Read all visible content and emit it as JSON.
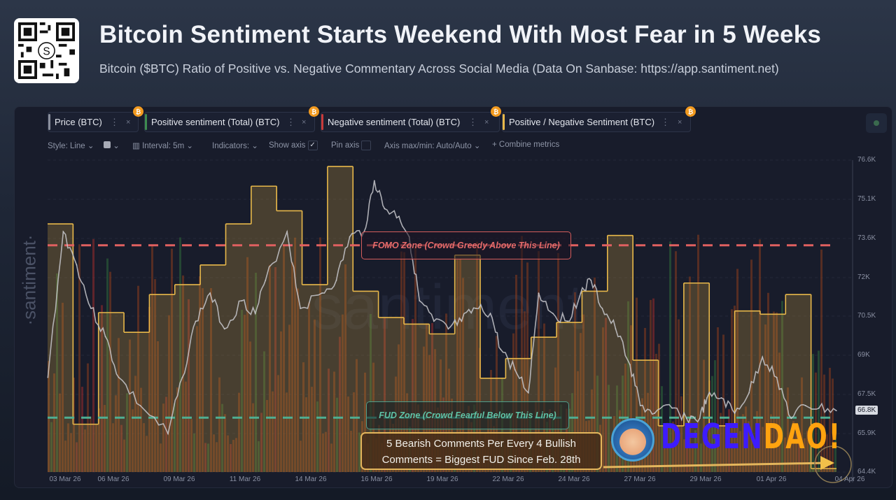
{
  "header": {
    "title": "Bitcoin Sentiment Starts Weekend With Most Fear in 5 Weeks",
    "subtitle": "Bitcoin ($BTC) Ratio of Positive vs. Negative Commentary Across Social Media (Data On Sanbase: https://app.santiment.net)",
    "qr_logo": "S"
  },
  "metrics": [
    {
      "label": "Price (BTC)",
      "color": "#8a8f9c"
    },
    {
      "label": "Positive sentiment (Total) (BTC)",
      "color": "#3d8b4f"
    },
    {
      "label": "Negative sentiment (Total) (BTC)",
      "color": "#c83a3a"
    },
    {
      "label": "Positive / Negative Sentiment (BTC)",
      "color": "#e8b84a"
    }
  ],
  "metric_icons": {
    "asset": "bitcoin-icon",
    "menu": "⋮",
    "close": "×",
    "coin_glyph": "₿"
  },
  "toolbar": {
    "style": "Style: Line",
    "interval": "Interval: 5m",
    "indicators": "Indicators:",
    "show_axis": "Show axis",
    "show_axis_checked": true,
    "pin_axis": "Pin axis",
    "pin_axis_checked": false,
    "axis_minmax": "Axis max/min: Auto/Auto",
    "combine": "Combine metrics",
    "chevron": "⌄",
    "plus": "+"
  },
  "watermark": "·santiment·",
  "zones": {
    "fomo_label": "FOMO Zone (Crowd Greedy Above This Line)",
    "fomo_color": "#e06060",
    "fud_label": "FUD Zone (Crowd Fearful Below This Line)",
    "fud_color": "#4fae92"
  },
  "annotation": {
    "line1": "5 Bearish Comments Per Every 4 Bullish",
    "line2": "Comments = Biggest FUD Since Feb. 28th"
  },
  "overlay_logo": {
    "part1": "DEGEN",
    "part2": "DAO!",
    "color1": "#3d1cff",
    "color2": "#ffa30f"
  },
  "chart_data": {
    "type": "line",
    "title": "",
    "grid": true,
    "x_ticks": [
      "03 Mar 26",
      "06 Mar 26",
      "09 Mar 26",
      "11 Mar 26",
      "14 Mar 26",
      "16 Mar 26",
      "19 Mar 26",
      "22 Mar 26",
      "24 Mar 26",
      "27 Mar 26",
      "29 Mar 26",
      "01 Apr 26",
      "04 Apr 26"
    ],
    "y_ticks": [
      "76.6K",
      "75.1K",
      "73.6K",
      "72K",
      "70.5K",
      "69K",
      "67.5K",
      "65.9K",
      "64.4K"
    ],
    "ylim_price_k": [
      64.4,
      76.6
    ],
    "current_price_label": "66.8K",
    "series": [
      {
        "name": "Price (BTC)",
        "color": "#c8c8cc",
        "unit": "K USD",
        "points": [
          [
            "2026-03-02 12:00",
            68.1
          ],
          [
            "2026-03-03 03:00",
            73.8
          ],
          [
            "2026-03-03 16:00",
            72.5
          ],
          [
            "2026-03-04 06:00",
            70.8
          ],
          [
            "2026-03-04 20:00",
            69.7
          ],
          [
            "2026-03-05 09:00",
            68.1
          ],
          [
            "2026-03-06 06:00",
            67.0
          ],
          [
            "2026-03-07 09:00",
            65.9
          ],
          [
            "2026-03-07 23:00",
            68.1
          ],
          [
            "2026-03-08 12:00",
            70.3
          ],
          [
            "2026-03-09 02:00",
            71.4
          ],
          [
            "2026-03-09 16:00",
            70.0
          ],
          [
            "2026-03-10 09:00",
            71.1
          ],
          [
            "2026-03-10 22:00",
            70.6
          ],
          [
            "2026-03-11 08:00",
            71.9
          ],
          [
            "2026-03-12 05:00",
            73.8
          ],
          [
            "2026-03-12 18:00",
            70.8
          ],
          [
            "2026-03-13 15:00",
            71.4
          ],
          [
            "2026-03-14 05:00",
            71.9
          ],
          [
            "2026-03-14 18:00",
            73.6
          ],
          [
            "2026-03-15 08:00",
            73.8
          ],
          [
            "2026-03-15 18:00",
            75.8
          ],
          [
            "2026-03-16 04:00",
            74.7
          ],
          [
            "2026-03-16 18:00",
            74.4
          ],
          [
            "2026-03-17 04:00",
            73.6
          ],
          [
            "2026-03-17 14:00",
            71.1
          ],
          [
            "2026-03-18 04:00",
            70.3
          ],
          [
            "2026-03-18 18:00",
            70.0
          ],
          [
            "2026-03-19 07:00",
            70.3
          ],
          [
            "2026-03-19 21:00",
            70.8
          ],
          [
            "2026-03-20 11:00",
            70.6
          ],
          [
            "2026-03-20 21:00",
            69.2
          ],
          [
            "2026-03-21 11:00",
            68.4
          ],
          [
            "2026-03-22 00:00",
            67.5
          ],
          [
            "2026-03-22 10:00",
            71.4
          ],
          [
            "2026-03-23 00:00",
            70.6
          ],
          [
            "2026-03-23 14:00",
            70.3
          ],
          [
            "2026-03-24 03:00",
            71.4
          ],
          [
            "2026-03-24 13:00",
            71.9
          ],
          [
            "2026-03-25 00:00",
            70.8
          ],
          [
            "2026-03-25 13:00",
            70.0
          ],
          [
            "2026-03-26 03:00",
            68.6
          ],
          [
            "2026-03-26 13:00",
            67.0
          ],
          [
            "2026-03-27 03:00",
            66.7
          ],
          [
            "2026-03-27 20:00",
            66.9
          ],
          [
            "2026-03-28 10:00",
            66.5
          ],
          [
            "2026-03-28 23:00",
            66.5
          ],
          [
            "2026-03-29 06:00",
            67.3
          ],
          [
            "2026-03-29 20:00",
            67.3
          ],
          [
            "2026-03-30 09:00",
            66.7
          ],
          [
            "2026-03-30 23:00",
            67.5
          ],
          [
            "2026-03-31 12:00",
            68.9
          ],
          [
            "2026-04-01 02:00",
            68.1
          ],
          [
            "2026-04-01 16:00",
            66.5
          ],
          [
            "2026-04-02 06:00",
            67.0
          ],
          [
            "2026-04-02 19:00",
            66.9
          ],
          [
            "2026-04-03 12:00",
            66.8
          ]
        ]
      },
      {
        "name": "Positive / Negative Sentiment (BTC)",
        "color": "#e8b84a",
        "style": "step",
        "values": [
          2.29,
          1.07,
          1.75,
          1.63,
          1.86,
          1.92,
          2.04,
          2.29,
          2.52,
          2.37,
          1.92,
          2.64,
          1.88,
          1.72,
          1.68,
          1.62,
          2.1,
          1.35,
          1.47,
          1.6,
          1.69,
          1.88,
          2.22,
          1.46,
          1.06,
          1.93,
          1.06,
          1.76,
          1.74,
          1.86,
          0.8
        ],
        "fomo_level": 2.16,
        "fud_level": 1.11
      }
    ]
  }
}
